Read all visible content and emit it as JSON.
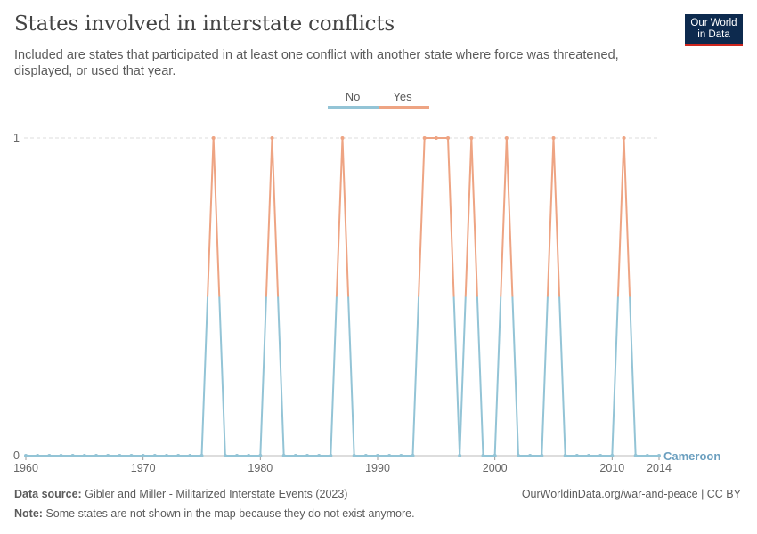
{
  "header": {
    "title": "States involved in interstate conflicts",
    "subtitle": "Included are states that participated in at least one conflict with another state where force was threatened, displayed, or used that year.",
    "logo_line1": "Our World",
    "logo_line2": "in Data"
  },
  "legend": {
    "items": [
      {
        "label": "No",
        "color": "#93c4d6"
      },
      {
        "label": "Yes",
        "color": "#eea483"
      }
    ]
  },
  "footer": {
    "source_label": "Data source:",
    "source_text": "Gibler and Miller - Militarized Interstate Events (2023)",
    "url": "OurWorldinData.org/war-and-peace | CC BY",
    "note_label": "Note:",
    "note_text": "Some states are not shown in the map because they do not exist anymore."
  },
  "chart_data": {
    "type": "line",
    "title": "States involved in interstate conflicts",
    "series_label": "Cameroon",
    "colors": {
      "no": "#93c4d6",
      "yes": "#eea483",
      "label": "#6b9fbf"
    },
    "xlim": [
      1960,
      2014
    ],
    "ylim": [
      0,
      1
    ],
    "x_ticks": [
      1960,
      1970,
      1980,
      1990,
      2000,
      2010,
      2014
    ],
    "y_ticks": [
      0,
      1
    ],
    "x": [
      1960,
      1961,
      1962,
      1963,
      1964,
      1965,
      1966,
      1967,
      1968,
      1969,
      1970,
      1971,
      1972,
      1973,
      1974,
      1975,
      1976,
      1977,
      1978,
      1979,
      1980,
      1981,
      1982,
      1983,
      1984,
      1985,
      1986,
      1987,
      1988,
      1989,
      1990,
      1991,
      1992,
      1993,
      1994,
      1995,
      1996,
      1997,
      1998,
      1999,
      2000,
      2001,
      2002,
      2003,
      2004,
      2005,
      2006,
      2007,
      2008,
      2009,
      2010,
      2011,
      2012,
      2013,
      2014
    ],
    "values": [
      0,
      0,
      0,
      0,
      0,
      0,
      0,
      0,
      0,
      0,
      0,
      0,
      0,
      0,
      0,
      0,
      1,
      0,
      0,
      0,
      0,
      1,
      0,
      0,
      0,
      0,
      0,
      1,
      0,
      0,
      0,
      0,
      0,
      0,
      1,
      1,
      1,
      0,
      1,
      0,
      0,
      1,
      0,
      0,
      0,
      1,
      0,
      0,
      0,
      0,
      0,
      1,
      0,
      0,
      0
    ],
    "grid": true,
    "legend_position": "top-center"
  }
}
